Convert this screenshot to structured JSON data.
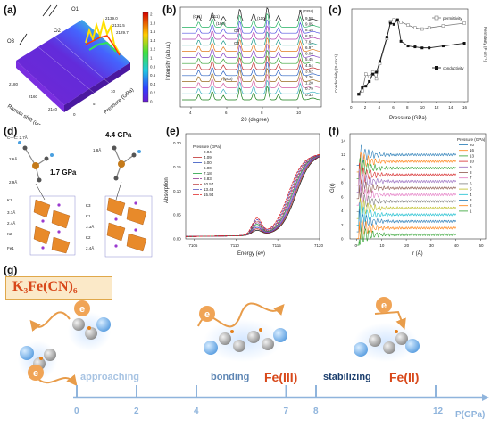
{
  "figure": {
    "panel_labels": [
      "(a)",
      "(b)",
      "(c)",
      "(d)",
      "(e)",
      "(f)",
      "(g)"
    ]
  },
  "panel_a": {
    "labels": {
      "o1": "O1",
      "o2": "O2",
      "o3": "O3"
    },
    "xlabel": "Raman shift (cm⁻¹)",
    "ylabel": "Pressure (GPa)",
    "xticks": [
      "2180",
      "2160",
      "2140"
    ],
    "yticks": [
      "0",
      "5",
      "10"
    ],
    "peak_labels": [
      "2139.0",
      "2132.5",
      "2129.7"
    ],
    "colorbar_ticks": [
      "2",
      "1.8",
      "1.6",
      "1.4",
      "1.2",
      "1",
      "0.8",
      "0.6",
      "0.4",
      "0.2",
      "0"
    ]
  },
  "panel_b": {
    "ylabel": "Intensity (a.b.u.)",
    "xlabel": "2θ (degree)",
    "xticks": [
      "4",
      "6",
      "8",
      "10"
    ],
    "legend_title": "P (GPa)",
    "pressures": [
      "9.58",
      "9.05",
      "8.15",
      "8.02",
      "7.61",
      "6.97",
      "6.06",
      "5.45",
      "4.54",
      "3.62",
      "2.26",
      "1.20",
      "0.79",
      "0.33"
    ],
    "annotations": [
      "O2",
      "O3",
      "(011)",
      "(111)",
      "(100)",
      "(200)",
      "(110)"
    ]
  },
  "panel_c": {
    "xlabel": "Pressure (GPa)",
    "ylabel_left": "Conductivity (S·cm⁻¹)",
    "ylabel_right": "Permitivity (F·cm⁻¹)",
    "xticks": [
      "0",
      "2",
      "4",
      "6",
      "8",
      "10",
      "12",
      "14",
      "16"
    ],
    "legend": [
      "permittivity",
      "conductivity"
    ]
  },
  "panel_d": {
    "pressures": [
      "1.7 GPa",
      "4.4 GPa"
    ],
    "bond_labels": [
      "C—C: 2.7Å",
      "2.6Å",
      "2.9Å",
      "1.8Å",
      "3.7Å",
      "2.4Å",
      "3.3Å",
      "2.4Å"
    ],
    "atom_labels": [
      "K1",
      "K2",
      "Fe1",
      "K3",
      "K1",
      "K2"
    ]
  },
  "panel_e": {
    "ylabel": "Absorption",
    "xlabel": "Energy (ev)",
    "xticks": [
      "7105",
      "7110",
      "7115",
      "7120"
    ],
    "yticks": [
      "0.00",
      "0.05",
      "0.10",
      "0.15",
      "0.20"
    ],
    "legend_title": "Pressure (GPa)",
    "legend": [
      "2.04",
      "4.09",
      "5.00",
      "6.00",
      "7.18",
      "8.83",
      "10.57",
      "13.43",
      "15.94"
    ]
  },
  "panel_f": {
    "ylabel": "G(r)",
    "xlabel": "r (Å)",
    "xticks": [
      "0",
      "10",
      "20",
      "30",
      "40",
      "50"
    ],
    "yticks": [
      "0",
      "2",
      "4",
      "6",
      "8",
      "10",
      "12",
      "14"
    ],
    "legend_title": "Pressure (GPa)",
    "legend": [
      "20",
      "16",
      "13",
      "10",
      "9",
      "8",
      "7",
      "6",
      "5",
      "4",
      "3",
      "2",
      "1"
    ]
  },
  "panel_g": {
    "formula": "K₃Fe(CN)₆",
    "electron": "e",
    "stages": [
      "approaching",
      "bonding",
      "stabilizing"
    ],
    "species": [
      "Fe(III)",
      "Fe(II)"
    ],
    "axis_ticks": [
      "0",
      "2",
      "4",
      "7",
      "8",
      "12"
    ],
    "axis_unit": "P(GPa)"
  },
  "colors": {
    "accent_orange": "#e06b1a",
    "timeline_blue": "#8fb4dc",
    "stage_light": "#a8c4e3",
    "stage_mid": "#5e86b4",
    "stage_dark": "#1c3f6e"
  }
}
